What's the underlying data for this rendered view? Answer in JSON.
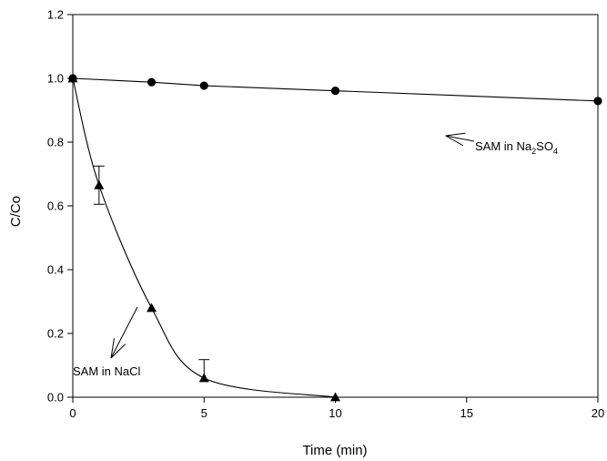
{
  "chart_data": {
    "type": "line",
    "title": "",
    "xlabel": "Time (min)",
    "ylabel": "C/Co",
    "xlim": [
      0,
      20
    ],
    "ylim": [
      0,
      1.2
    ],
    "xticks": [
      0,
      5,
      10,
      15,
      20
    ],
    "yticks": [
      0.0,
      0.2,
      0.4,
      0.6,
      0.8,
      1.0,
      1.2
    ],
    "xtick_labels": [
      "0",
      "5",
      "10",
      "15",
      "20"
    ],
    "ytick_labels": [
      "0.0",
      "0.2",
      "0.4",
      "0.6",
      "0.8",
      "1.0",
      "1.2"
    ],
    "grid": false,
    "series": [
      {
        "marker": "circle",
        "x": [
          0,
          3,
          5,
          10,
          20
        ],
        "y": [
          1.0,
          0.988,
          0.977,
          0.961,
          0.929
        ],
        "curve": "straight"
      },
      {
        "marker": "triangle",
        "x": [
          0,
          1,
          3,
          5,
          10
        ],
        "y": [
          1.0,
          0.665,
          0.28,
          0.06,
          0.0
        ],
        "curve": "smooth",
        "error_upper": [
          null,
          0.725,
          null,
          0.118,
          null
        ],
        "error_lower": [
          null,
          0.605,
          null,
          null,
          null
        ]
      }
    ],
    "annotations": [
      {
        "text": "SAM in Na",
        "sub1": "2",
        "mid": "SO",
        "sub2": "4",
        "series": 0,
        "points_to_x": 14.2,
        "points_to_y": 0.82
      },
      {
        "text": "SAM in NaCl",
        "series": 1,
        "points_to_x": 2.7,
        "points_to_y": 0.29
      }
    ]
  }
}
